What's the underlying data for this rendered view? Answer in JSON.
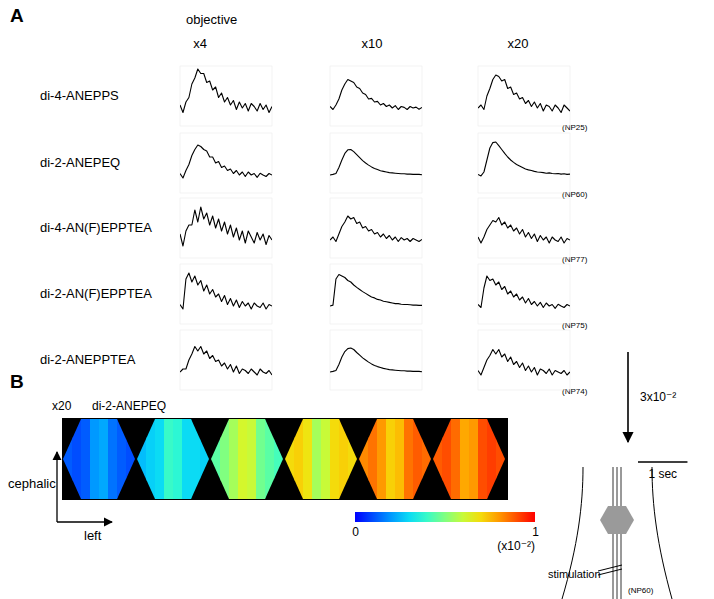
{
  "chart_data": [
    {
      "type": "line",
      "panel": "A",
      "header": "objective",
      "columns": [
        "x4",
        "x10",
        "x20"
      ],
      "x": [
        0,
        0.06,
        0.12,
        0.18,
        0.24,
        0.3,
        0.36,
        0.42,
        0.48,
        0.54,
        0.6,
        0.66,
        0.72,
        0.78,
        0.84,
        0.9,
        0.96,
        1.02,
        1.08,
        1.14,
        1.2,
        1.26,
        1.32,
        1.38,
        1.44,
        1.5,
        1.56,
        1.62,
        1.68,
        1.74,
        1.8,
        1.86
      ],
      "xlim": [
        0,
        1.86
      ],
      "ylim": [
        -0.6,
        1.4
      ],
      "tick_labels": false,
      "color": "#000000",
      "rows": [
        {
          "name": "di-4-ANEPPS",
          "prep": "(NP25)",
          "series": [
            [
              0.1,
              -0.15,
              0.2,
              0.35,
              0.8,
              1.0,
              1.3,
              1.15,
              1.15,
              0.85,
              0.9,
              0.6,
              0.7,
              0.35,
              0.5,
              0.2,
              0.35,
              0.1,
              0.25,
              -0.05,
              0.2,
              0.0,
              0.15,
              -0.1,
              0.15,
              0.05,
              -0.1,
              0.15,
              -0.05,
              0.1,
              -0.15,
              0.05
            ],
            [
              0.05,
              -0.05,
              0.1,
              0.3,
              0.6,
              0.8,
              0.95,
              0.9,
              0.85,
              0.7,
              0.65,
              0.5,
              0.45,
              0.3,
              0.32,
              0.2,
              0.22,
              0.1,
              0.15,
              0.05,
              0.1,
              0.0,
              0.08,
              -0.05,
              0.05,
              0.02,
              -0.05,
              0.05,
              0.0,
              0.03,
              -0.04,
              0.02
            ],
            [
              0.0,
              0.1,
              -0.05,
              0.4,
              0.65,
              0.95,
              1.1,
              1.05,
              0.9,
              0.95,
              0.65,
              0.7,
              0.45,
              0.5,
              0.3,
              0.35,
              0.15,
              0.25,
              0.05,
              0.2,
              0.0,
              0.15,
              -0.1,
              0.1,
              0.05,
              -0.1,
              0.1,
              0.0,
              -0.15,
              0.1,
              0.0,
              -0.1
            ]
          ]
        },
        {
          "name": "di-2-ANEPEQ",
          "prep": "(NP60)",
          "series": [
            [
              0.05,
              -0.1,
              0.15,
              0.35,
              0.65,
              0.85,
              1.0,
              0.95,
              0.85,
              0.8,
              0.6,
              0.6,
              0.4,
              0.45,
              0.25,
              0.3,
              0.15,
              0.2,
              0.05,
              0.15,
              0.0,
              0.1,
              -0.05,
              0.1,
              0.0,
              0.05,
              -0.08,
              0.06,
              0.0,
              -0.05,
              0.05,
              0.0
            ],
            [
              0.0,
              0.02,
              0.05,
              0.25,
              0.5,
              0.72,
              0.84,
              0.85,
              0.78,
              0.68,
              0.58,
              0.48,
              0.4,
              0.33,
              0.27,
              0.22,
              0.18,
              0.14,
              0.12,
              0.1,
              0.08,
              0.07,
              0.06,
              0.05,
              0.04,
              0.04,
              0.03,
              0.03,
              0.02,
              0.02,
              0.02,
              0.01
            ],
            [
              0.02,
              -0.03,
              0.1,
              0.5,
              0.9,
              1.08,
              1.1,
              0.98,
              0.85,
              0.72,
              0.6,
              0.5,
              0.42,
              0.35,
              0.3,
              0.25,
              0.2,
              0.17,
              0.15,
              0.12,
              0.1,
              0.09,
              0.08,
              0.06,
              0.07,
              0.05,
              0.04,
              0.05,
              0.03,
              0.04,
              0.02,
              0.03
            ]
          ]
        },
        {
          "name": "di-4-AN(F)EPPTEA",
          "prep": "(NP77)",
          "series": [
            [
              0.2,
              -0.2,
              0.3,
              0.5,
              0.5,
              1.0,
              0.6,
              1.1,
              0.7,
              0.9,
              0.5,
              0.8,
              0.4,
              0.7,
              0.3,
              0.6,
              0.2,
              0.5,
              0.1,
              0.4,
              0.0,
              0.3,
              -0.1,
              0.3,
              0.1,
              -0.1,
              0.25,
              0.0,
              0.2,
              -0.15,
              0.15,
              0.0
            ],
            [
              0.0,
              0.1,
              -0.05,
              0.2,
              0.45,
              0.6,
              0.8,
              0.7,
              0.75,
              0.55,
              0.6,
              0.4,
              0.45,
              0.3,
              0.35,
              0.2,
              0.25,
              0.1,
              0.2,
              0.05,
              0.15,
              0.0,
              0.1,
              -0.05,
              0.08,
              0.0,
              0.05,
              -0.05,
              0.05,
              0.0,
              -0.05,
              0.02
            ],
            [
              0.1,
              -0.1,
              0.1,
              0.35,
              0.5,
              0.65,
              0.6,
              0.75,
              0.5,
              0.6,
              0.4,
              0.5,
              0.3,
              0.4,
              0.2,
              0.35,
              0.1,
              0.25,
              0.05,
              0.2,
              -0.05,
              0.15,
              0.0,
              0.1,
              -0.1,
              0.1,
              0.0,
              -0.05,
              0.1,
              -0.1,
              0.05,
              0.0
            ]
          ]
        },
        {
          "name": "di-2-AN(F)EPPTEA",
          "prep": "(NP75)",
          "series": [
            [
              0.05,
              -0.1,
              0.9,
              1.1,
              0.8,
              1.0,
              0.7,
              0.85,
              0.5,
              0.7,
              0.4,
              0.55,
              0.3,
              0.4,
              0.15,
              0.35,
              0.05,
              0.25,
              0.0,
              0.2,
              -0.05,
              0.15,
              0.0,
              0.1,
              -0.1,
              0.1,
              0.0,
              -0.05,
              0.1,
              -0.1,
              0.05,
              0.0
            ],
            [
              0.0,
              0.03,
              0.9,
              1.05,
              1.0,
              0.95,
              0.85,
              0.8,
              0.7,
              0.62,
              0.55,
              0.48,
              0.42,
              0.36,
              0.3,
              0.27,
              0.22,
              0.2,
              0.16,
              0.14,
              0.12,
              0.1,
              0.08,
              0.08,
              0.06,
              0.05,
              0.05,
              0.04,
              0.03,
              0.03,
              0.02,
              0.02
            ],
            [
              0.05,
              -0.05,
              0.6,
              1.0,
              0.85,
              0.9,
              0.7,
              0.8,
              0.55,
              0.65,
              0.4,
              0.5,
              0.3,
              0.4,
              0.2,
              0.3,
              0.1,
              0.25,
              0.05,
              0.15,
              0.0,
              0.12,
              -0.05,
              0.1,
              0.0,
              0.05,
              -0.08,
              0.06,
              0.0,
              -0.05,
              0.05,
              0.0
            ]
          ]
        },
        {
          "name": "di-2-ANEPPTEA",
          "prep": "(NP74)",
          "series": [
            [
              0.0,
              0.1,
              0.1,
              0.4,
              0.6,
              0.85,
              0.7,
              0.85,
              0.6,
              0.7,
              0.45,
              0.55,
              0.35,
              0.4,
              0.2,
              0.3,
              0.1,
              0.25,
              0.0,
              0.2,
              -0.05,
              0.1,
              0.05,
              -0.05,
              0.1,
              0.0,
              -0.1,
              0.1,
              0.0,
              -0.05,
              0.05,
              -0.1
            ],
            [
              0.0,
              0.02,
              0.05,
              0.25,
              0.5,
              0.68,
              0.78,
              0.8,
              0.75,
              0.65,
              0.56,
              0.47,
              0.4,
              0.33,
              0.27,
              0.22,
              0.18,
              0.15,
              0.12,
              0.1,
              0.08,
              0.07,
              0.06,
              0.05,
              0.04,
              0.04,
              0.03,
              0.03,
              0.02,
              0.02,
              0.02,
              0.01
            ],
            [
              0.05,
              -0.1,
              0.15,
              0.4,
              0.55,
              0.75,
              0.6,
              0.75,
              0.5,
              0.6,
              0.35,
              0.5,
              0.25,
              0.35,
              0.15,
              0.3,
              0.05,
              0.2,
              0.0,
              0.15,
              -0.1,
              0.1,
              0.05,
              -0.05,
              0.1,
              -0.1,
              0.05,
              0.0,
              -0.05,
              0.05,
              -0.1,
              0.0
            ]
          ]
        }
      ],
      "scale_bars": {
        "amplitude": {
          "value": 3,
          "label": "3x10⁻²"
        },
        "time": {
          "value": 1,
          "label": "1 sec"
        }
      }
    },
    {
      "type": "heatmap",
      "panel": "B",
      "objective": "x20",
      "dye": "di-2-ANEPEQ",
      "tick_labels": false,
      "frames": [
        [
          0.12,
          0.1,
          0.12,
          0.2,
          0.22,
          0.15,
          0.12,
          0.1
        ],
        [
          0.25,
          0.28,
          0.3,
          0.4,
          0.38,
          0.3,
          0.3,
          0.28
        ],
        [
          0.45,
          0.5,
          0.55,
          0.62,
          0.6,
          0.48,
          0.45,
          0.42
        ],
        [
          0.7,
          0.72,
          0.68,
          0.55,
          0.6,
          0.7,
          0.72,
          0.7
        ],
        [
          0.82,
          0.85,
          0.8,
          0.72,
          0.75,
          0.85,
          0.88,
          0.86
        ],
        [
          0.88,
          0.9,
          0.86,
          0.78,
          0.8,
          0.9,
          0.92,
          0.9
        ]
      ],
      "colorbar": {
        "range": [
          0,
          1
        ],
        "ticks": [
          0,
          1
        ],
        "label": "(x10⁻²)"
      },
      "orientation_labels": {
        "up": "cephalic",
        "right": "left"
      },
      "diagram": {
        "stimulation": "stimulation",
        "prep": "(NP60)"
      }
    }
  ]
}
